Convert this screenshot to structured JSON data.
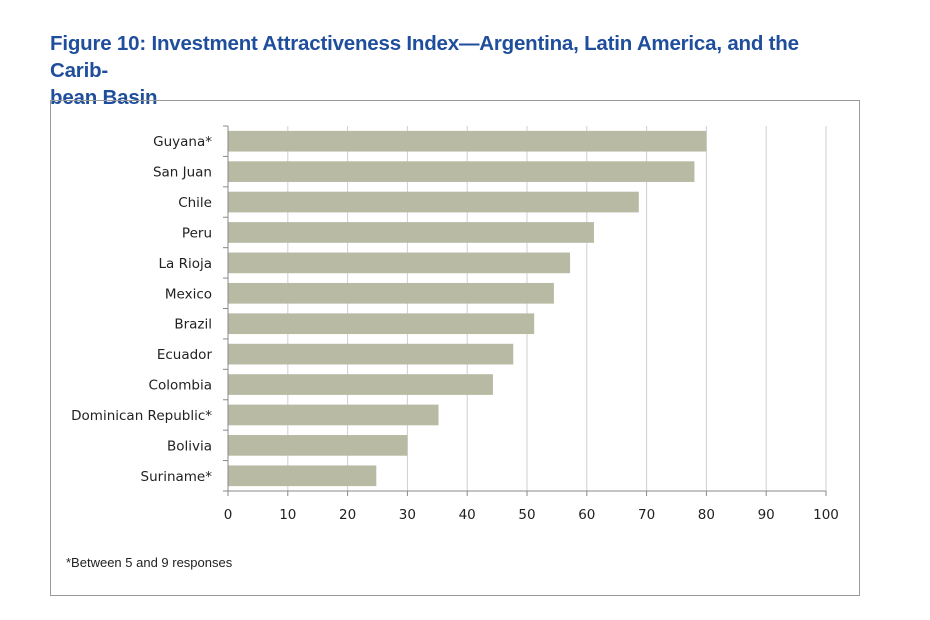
{
  "page": {
    "title": "Figure 10: Investment Attractiveness Index—Argentina, Latin America, and the Carib-bean Basin",
    "title_line1": "Figure 10: Investment Attractiveness Index—Argentina, Latin America, and the Carib-",
    "title_line2": "bean Basin",
    "footnote": "*Between 5 and 9 responses"
  },
  "colors": {
    "title": "#1f4e9c",
    "bar": "#b8baa4",
    "gridline": "#cfcfcf",
    "axis": "#888888",
    "frame": "#9a9a9a"
  },
  "chart_data": {
    "type": "bar",
    "orientation": "horizontal",
    "categories": [
      "Guyana*",
      "San Juan",
      "Chile",
      "Peru",
      "La Rioja",
      "Mexico",
      "Brazil",
      "Ecuador",
      "Colombia",
      "Dominican Republic*",
      "Bolivia",
      "Suriname*"
    ],
    "values": [
      80,
      78,
      68.7,
      61.2,
      57.2,
      54.5,
      51.2,
      47.7,
      44.3,
      35.2,
      30,
      24.8
    ],
    "xlim": [
      0,
      100
    ],
    "xticks": [
      0,
      10,
      20,
      30,
      40,
      50,
      60,
      70,
      80,
      90,
      100
    ],
    "grid": true,
    "xlabel": "",
    "ylabel": ""
  }
}
